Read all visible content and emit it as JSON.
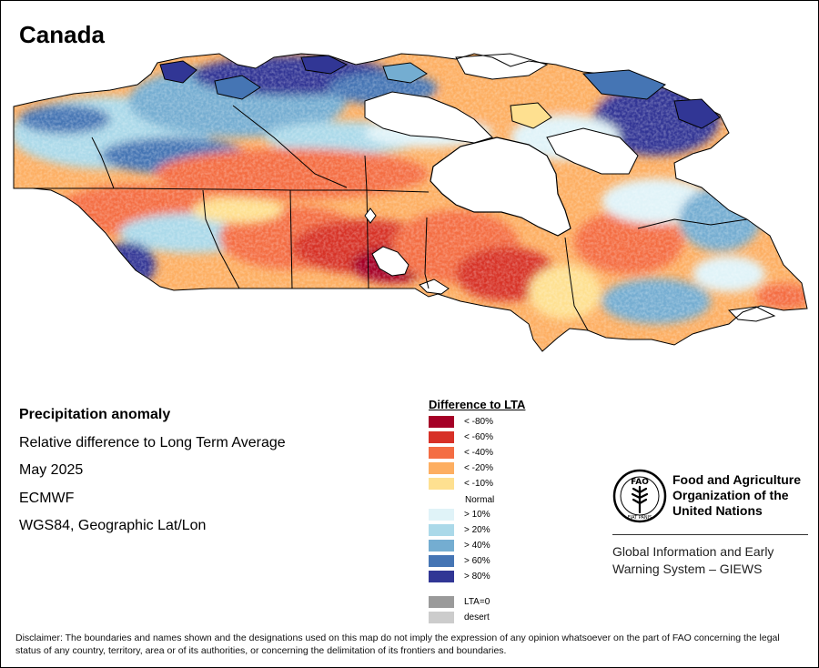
{
  "title": "Canada",
  "info": {
    "line1": "Precipitation anomaly",
    "line2": "Relative difference to Long Term Average",
    "line3": "May 2025",
    "line4": "ECMWF",
    "line5": "WGS84, Geographic Lat/Lon"
  },
  "legend": {
    "title": "Difference to LTA",
    "normal": "Normal",
    "negative": [
      {
        "label": "< -80%",
        "color": "#a50026"
      },
      {
        "label": "< -60%",
        "color": "#d73027"
      },
      {
        "label": "< -40%",
        "color": "#f46d43"
      },
      {
        "label": "< -20%",
        "color": "#fdae61"
      },
      {
        "label": "< -10%",
        "color": "#fee090"
      }
    ],
    "positive": [
      {
        "label": "> 10%",
        "color": "#e0f3f8"
      },
      {
        "label": "> 20%",
        "color": "#abd9e9"
      },
      {
        "label": "> 40%",
        "color": "#74add1"
      },
      {
        "label": "> 60%",
        "color": "#4575b4"
      },
      {
        "label": "> 80%",
        "color": "#313695"
      }
    ],
    "special": [
      {
        "label": "LTA=0",
        "color": "#9a9a9a"
      },
      {
        "label": "desert",
        "color": "#cccccc"
      }
    ]
  },
  "fao": {
    "logo_top": "FAO",
    "logo_motto": "FIAT PANIS",
    "name_line1": "Food and Agriculture",
    "name_line2": "Organization of the",
    "name_line3": "United Nations",
    "giews_line1": "Global Information and Early",
    "giews_line2": "Warning System – GIEWS"
  },
  "disclaimer": "Disclaimer: The boundaries and names shown and the designations used on this map do not imply the expression of any opinion whatsoever on the part of FAO concerning the legal status of any country, territory, area or of its authorities, or concerning the delimitation of its frontiers and boundaries."
}
